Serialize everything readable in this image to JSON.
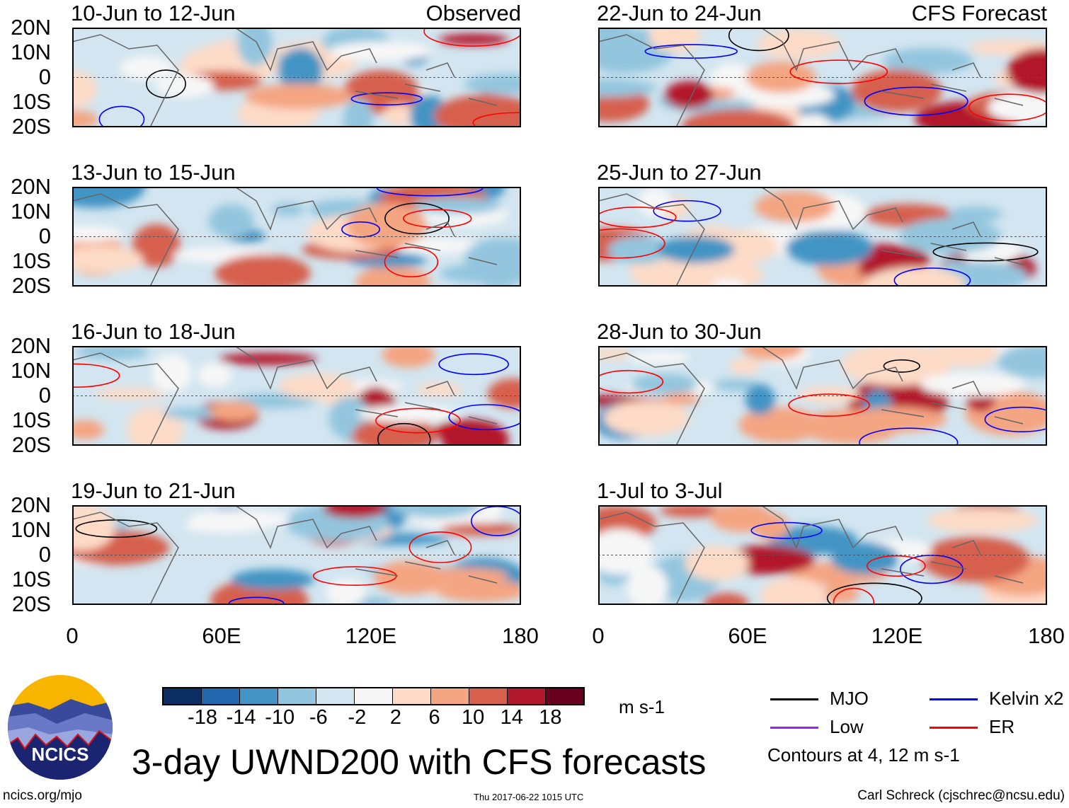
{
  "panels": [
    {
      "title": "10-Jun to 12-Jun",
      "label": "Observed"
    },
    {
      "title": "22-Jun to 24-Jun",
      "label": "CFS Forecast"
    },
    {
      "title": "13-Jun to 15-Jun",
      "label": ""
    },
    {
      "title": "25-Jun to 27-Jun",
      "label": ""
    },
    {
      "title": "16-Jun to 18-Jun",
      "label": ""
    },
    {
      "title": "28-Jun to 30-Jun",
      "label": ""
    },
    {
      "title": "19-Jun to 21-Jun",
      "label": ""
    },
    {
      "title": "1-Jul to 3-Jul",
      "label": ""
    }
  ],
  "y_ticks": [
    "20N",
    "10N",
    "0",
    "10S",
    "20S"
  ],
  "x_ticks": [
    "0",
    "60E",
    "120E",
    "180"
  ],
  "colorbar": {
    "colors": [
      "#0b2d62",
      "#2266ad",
      "#4394c4",
      "#93c6de",
      "#d2e5f0",
      "#f7f7f7",
      "#fddbc7",
      "#f4a582",
      "#d6604d",
      "#b2182b",
      "#67001f"
    ],
    "ticks": [
      "-18",
      "-14",
      "-10",
      "-6",
      "-2",
      "2",
      "6",
      "10",
      "14",
      "18"
    ],
    "units": "m s-1"
  },
  "legend": {
    "items": [
      {
        "label": "MJO",
        "color": "#000000"
      },
      {
        "label": "Kelvin x2",
        "color": "#0000ff"
      },
      {
        "label": "Low",
        "color": "#a020f0"
      },
      {
        "label": "ER",
        "color": "#ff0000"
      }
    ],
    "note": "Contours at 4, 12 m s-1"
  },
  "logo_text": "NCICS",
  "title": "3-day UWND200 with CFS forecasts",
  "footer": {
    "url": "ncics.org/mjo",
    "timestamp": "Thu 2017-06-22 1015 UTC",
    "author": "Carl Schreck (cjschrec@ncsu.edu)"
  }
}
